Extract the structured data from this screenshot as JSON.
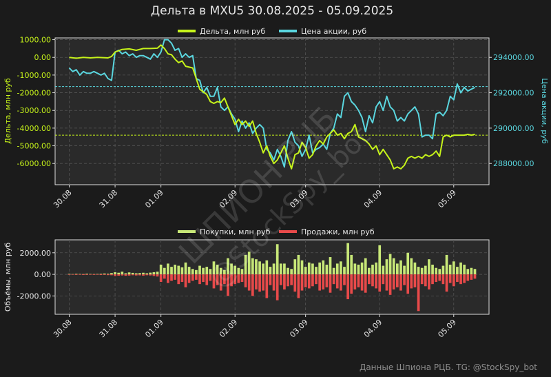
{
  "title": "Дельта в MXU5 30.08.2025 - 05.09.2025",
  "footer": "Данные Шпиона РЦБ. TG: @StockSpy_bot",
  "watermark": [
    "ШПИОН РЦБ",
    "@StockSpy_bot"
  ],
  "colors": {
    "background": "#1b1b1b",
    "panel": "#2a2a2a",
    "delta": "#c6f31a",
    "price": "#5ad6df",
    "buys": "#c8e878",
    "sells": "#e84a4a",
    "grid": "#555555",
    "text": "#e6e6e6"
  },
  "chart_data": [
    {
      "type": "line",
      "legend": {
        "position": "top-center",
        "entries": [
          "Дельта, млн руб",
          "Цена акции, руб"
        ]
      },
      "x_ticks": [
        "30.08",
        "31.08",
        "01.09",
        "02.09",
        "03.09",
        "04.09",
        "05.09"
      ],
      "x_tick_positions": [
        0,
        13,
        26,
        47,
        67,
        88,
        109
      ],
      "x_range": [
        -4,
        119
      ],
      "grid": true,
      "y_left": {
        "label": "Дельта, млн руб",
        "range": [
          -7200,
          1100
        ],
        "ticks": [
          1000,
          0,
          -1000,
          -2000,
          -3000,
          -4000,
          -5000,
          -6000
        ],
        "tick_labels": [
          "1000.00",
          "0.00",
          "-1000.00",
          "-2000.00",
          "-3000.00",
          "-4000.00",
          "-5000.00",
          "-6000.00"
        ],
        "reference_line": -4400
      },
      "y_right": {
        "label": "Цена акции, руб",
        "range": [
          286800,
          295100
        ],
        "ticks": [
          294000,
          292000,
          290000,
          288000
        ],
        "tick_labels": [
          "294000.00",
          "292000.00",
          "290000.00",
          "288000.00"
        ],
        "reference_line": 292350
      },
      "series": [
        {
          "name": "Дельта, млн руб",
          "axis": "left",
          "color": "#c6f31a",
          "x": [
            0,
            2,
            4,
            6,
            8,
            10,
            11,
            12,
            13,
            15,
            17,
            19,
            21,
            23,
            25,
            26,
            27,
            28,
            29,
            30,
            31,
            32,
            33,
            35,
            37,
            39,
            40,
            41,
            42,
            43,
            44,
            45,
            46,
            47,
            48,
            49,
            50,
            51,
            52,
            53,
            54,
            55,
            56,
            57,
            58,
            59,
            60,
            61,
            62,
            63,
            64,
            65,
            66,
            67,
            68,
            69,
            70,
            71,
            72,
            73,
            74,
            75,
            76,
            77,
            78,
            79,
            80,
            81,
            82,
            83,
            84,
            85,
            86,
            87,
            88,
            89,
            90,
            91,
            92,
            93,
            94,
            95,
            96,
            97,
            98,
            99,
            100,
            101,
            102,
            103,
            104,
            105,
            106,
            107,
            108,
            109,
            110,
            111,
            112,
            113,
            114,
            115
          ],
          "y": [
            0,
            -50,
            0,
            -30,
            0,
            -20,
            -30,
            50,
            300,
            450,
            480,
            400,
            500,
            500,
            520,
            700,
            500,
            200,
            150,
            -100,
            -300,
            -200,
            -500,
            -600,
            -1800,
            -2100,
            -2500,
            -2600,
            -2500,
            -2550,
            -2300,
            -2800,
            -3300,
            -3800,
            -3500,
            -3800,
            -3600,
            -3900,
            -3600,
            -4300,
            -4800,
            -5400,
            -5000,
            -5600,
            -6000,
            -5800,
            -5400,
            -5000,
            -5700,
            -6300,
            -5500,
            -5400,
            -4800,
            -5100,
            -5700,
            -5500,
            -5000,
            -4700,
            -4900,
            -4500,
            -4300,
            -4100,
            -4400,
            -4300,
            -4600,
            -4300,
            -4200,
            -3800,
            -4500,
            -4600,
            -4700,
            -4900,
            -5200,
            -5000,
            -5500,
            -5200,
            -5500,
            -5800,
            -6300,
            -6200,
            -6300,
            -6100,
            -5700,
            -5600,
            -5700,
            -5600,
            -5700,
            -5500,
            -5600,
            -5500,
            -5300,
            -5600,
            -4500,
            -4400,
            -4500,
            -4400,
            -4400,
            -4400,
            -4400,
            -4350,
            -4400,
            -4350
          ],
          "data_note": "approximate"
        },
        {
          "name": "Цена акции, руб",
          "axis": "right",
          "color": "#5ad6df",
          "x": [
            0,
            1,
            2,
            3,
            4,
            5,
            6,
            7,
            8,
            9,
            10,
            11,
            12,
            13,
            14,
            15,
            16,
            17,
            18,
            19,
            20,
            21,
            22,
            23,
            24,
            25,
            26,
            27,
            28,
            29,
            30,
            31,
            32,
            33,
            34,
            35,
            36,
            37,
            38,
            39,
            40,
            41,
            42,
            43,
            44,
            45,
            46,
            47,
            48,
            49,
            50,
            51,
            52,
            53,
            54,
            55,
            56,
            57,
            58,
            59,
            60,
            61,
            62,
            63,
            64,
            65,
            66,
            67,
            68,
            69,
            70,
            71,
            72,
            73,
            74,
            75,
            76,
            77,
            78,
            79,
            80,
            81,
            82,
            83,
            84,
            85,
            86,
            87,
            88,
            89,
            90,
            91,
            92,
            93,
            94,
            95,
            96,
            97,
            98,
            99,
            100,
            101,
            102,
            103,
            104,
            105,
            106,
            107,
            108,
            109,
            110,
            111,
            112,
            113,
            114,
            115
          ],
          "y": [
            293400,
            293200,
            293300,
            293000,
            293200,
            293100,
            293100,
            293200,
            293100,
            293000,
            293100,
            292800,
            292700,
            294300,
            294400,
            294200,
            294300,
            294100,
            294200,
            294000,
            294100,
            294100,
            294000,
            293900,
            294200,
            294000,
            294300,
            295000,
            295000,
            294800,
            294400,
            294500,
            294000,
            294200,
            294000,
            294100,
            292800,
            292700,
            292000,
            292300,
            291800,
            291800,
            292300,
            291200,
            291000,
            291200,
            290800,
            290500,
            289800,
            290400,
            290000,
            290300,
            289700,
            290000,
            290200,
            290000,
            288800,
            288600,
            288200,
            288800,
            288400,
            287800,
            289300,
            289800,
            289200,
            289000,
            288400,
            288800,
            289600,
            288600,
            288800,
            288900,
            289100,
            288800,
            289700,
            290000,
            290800,
            290600,
            291800,
            292000,
            291500,
            291300,
            291000,
            290600,
            289800,
            290700,
            290300,
            291200,
            291500,
            291000,
            291800,
            291200,
            291000,
            290400,
            290600,
            290400,
            290800,
            291000,
            291200,
            290800,
            289500,
            289600,
            289600,
            289400,
            290800,
            290900,
            290700,
            291000,
            291800,
            291600,
            292500,
            292000,
            292300,
            292100,
            292200,
            292300
          ],
          "data_note": "approximate"
        }
      ]
    },
    {
      "type": "bar",
      "legend": {
        "position": "top-center",
        "entries": [
          "Покупки, млн руб",
          "Продажи, млн руб"
        ]
      },
      "x_ticks": [
        "30.08",
        "31.08",
        "01.09",
        "02.09",
        "03.09",
        "04.09",
        "05.09"
      ],
      "x_tick_positions": [
        0,
        13,
        26,
        47,
        67,
        88,
        109
      ],
      "x_range": [
        -4,
        119
      ],
      "grid": true,
      "y": {
        "label": "Объёмы, млн руб",
        "range": [
          -3700,
          3200
        ],
        "ticks": [
          2000,
          0,
          -2000
        ],
        "tick_labels": [
          "2000.00",
          "0.00",
          "-2000.00"
        ]
      },
      "series": [
        {
          "name": "Покупки, млн руб",
          "color": "#c8e878",
          "values": [
            50,
            30,
            50,
            40,
            30,
            60,
            40,
            30,
            40,
            50,
            80,
            60,
            120,
            200,
            150,
            250,
            100,
            180,
            140,
            100,
            120,
            150,
            100,
            160,
            200,
            250,
            900,
            600,
            1000,
            700,
            900,
            800,
            650,
            1100,
            700,
            500,
            400,
            800,
            600,
            700,
            500,
            1200,
            900,
            600,
            400,
            1500,
            1000,
            800,
            600,
            500,
            1800,
            2100,
            1500,
            1400,
            1200,
            1000,
            1300,
            700,
            1000,
            2800,
            1000,
            1000,
            600,
            500,
            1400,
            1800,
            1300,
            700,
            1100,
            1000,
            700,
            1100,
            1300,
            900,
            1600,
            600,
            1000,
            1200,
            700,
            2900,
            1800,
            1000,
            900,
            1100,
            1500,
            600,
            900,
            1100,
            2700,
            800,
            1400,
            1900,
            1500,
            1000,
            1300,
            800,
            2000,
            1500,
            1100,
            700,
            600,
            800,
            1400,
            900,
            600,
            500,
            800,
            1800,
            900,
            1200,
            700,
            1100,
            900,
            500,
            600,
            500
          ],
          "data_note": "approximate"
        },
        {
          "name": "Продажи, млн руб",
          "color": "#e84a4a",
          "values": [
            -40,
            -30,
            -50,
            -40,
            -60,
            -50,
            -30,
            -50,
            -40,
            -60,
            -50,
            -70,
            -80,
            -150,
            -120,
            -100,
            -130,
            -110,
            -80,
            -100,
            -90,
            -120,
            -80,
            -100,
            -150,
            -200,
            -700,
            -400,
            -800,
            -600,
            -500,
            -900,
            -700,
            -1200,
            -800,
            -600,
            -500,
            -900,
            -700,
            -1000,
            -600,
            -1300,
            -1000,
            -1500,
            -900,
            -2000,
            -1100,
            -900,
            -800,
            -700,
            -1200,
            -1500,
            -2000,
            -1400,
            -1600,
            -1500,
            -2200,
            -1000,
            -1500,
            -2400,
            -1000,
            -1400,
            -1100,
            -1000,
            -1600,
            -2200,
            -1500,
            -1200,
            -1300,
            -1100,
            -900,
            -1500,
            -1400,
            -1200,
            -1700,
            -900,
            -1300,
            -1500,
            -1000,
            -2300,
            -1800,
            -1400,
            -1200,
            -1500,
            -1700,
            -900,
            -1100,
            -1300,
            -1600,
            -900,
            -1500,
            -1900,
            -1400,
            -1200,
            -1500,
            -1000,
            -1800,
            -1300,
            -1200,
            -3400,
            -900,
            -1100,
            -1400,
            -900,
            -700,
            -600,
            -900,
            -1600,
            -800,
            -1100,
            -700,
            -900,
            -800,
            -600,
            -500,
            -400
          ],
          "data_note": "approximate"
        }
      ]
    }
  ]
}
